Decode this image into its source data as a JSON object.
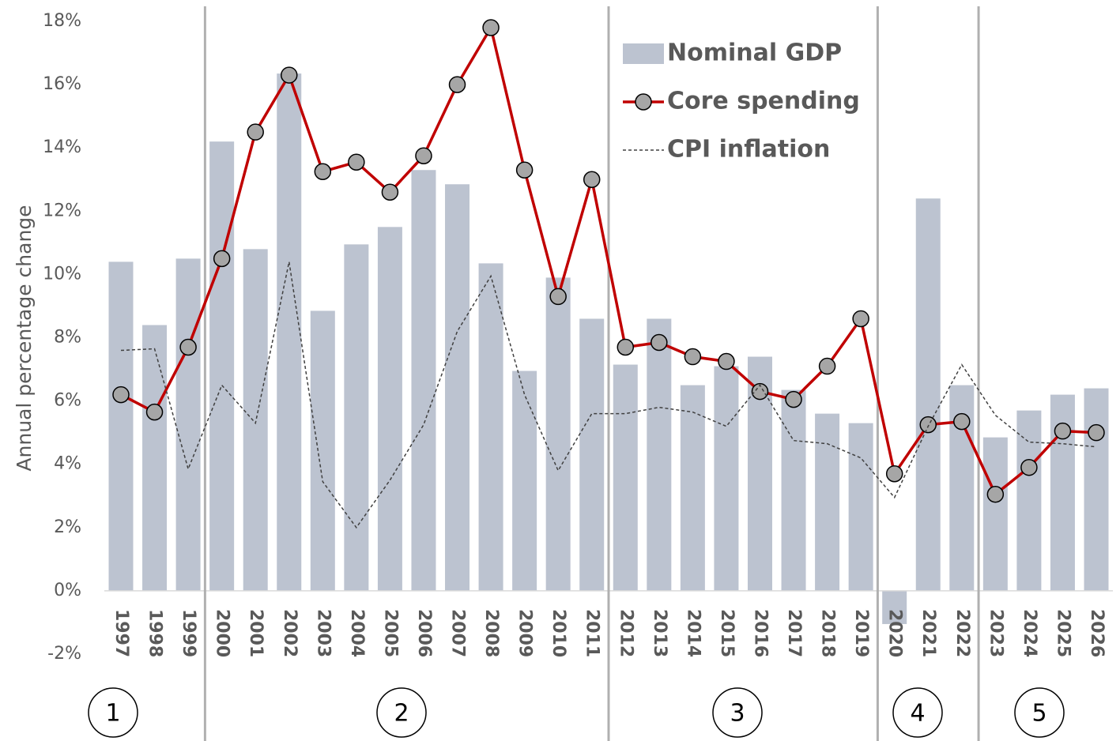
{
  "chart_data": {
    "type": "bar-line",
    "y_label": "Annual percentage change",
    "categories": [
      "1997",
      "1998",
      "1999",
      "2000",
      "2001",
      "2002",
      "2003",
      "2004",
      "2005",
      "2006",
      "2007",
      "2008",
      "2009",
      "2010",
      "2011",
      "2012",
      "2013",
      "2014",
      "2015",
      "2016",
      "2017",
      "2018",
      "2019",
      "2020",
      "2021",
      "2022",
      "2023",
      "2024",
      "2025",
      "2026"
    ],
    "series": [
      {
        "name": "Nominal GDP",
        "kind": "bar",
        "color": "#bcc3d0",
        "values": [
          10.4,
          8.4,
          10.5,
          14.2,
          10.8,
          16.35,
          8.85,
          10.95,
          11.5,
          13.3,
          12.85,
          10.35,
          6.95,
          9.9,
          8.6,
          7.15,
          8.6,
          6.5,
          7.1,
          7.4,
          6.35,
          5.6,
          5.3,
          -1.05,
          12.4,
          6.5,
          4.85,
          5.7,
          6.2,
          6.4
        ]
      },
      {
        "name": "Core spending",
        "kind": "line-marker",
        "color": "#c00000",
        "values": [
          6.2,
          5.65,
          7.7,
          10.5,
          14.5,
          16.3,
          13.25,
          13.55,
          12.6,
          13.75,
          16.0,
          17.8,
          13.3,
          9.3,
          13.0,
          7.7,
          7.85,
          7.4,
          7.25,
          6.3,
          6.05,
          7.1,
          8.6,
          3.7,
          5.25,
          5.35,
          3.05,
          3.9,
          5.05,
          5.0
        ]
      },
      {
        "name": "CPI inflation",
        "kind": "dashed-line",
        "color": "#404040",
        "values": [
          7.6,
          7.65,
          3.85,
          6.5,
          5.3,
          10.4,
          3.45,
          2.0,
          3.5,
          5.25,
          8.2,
          9.95,
          6.2,
          3.8,
          5.6,
          5.6,
          5.8,
          5.65,
          5.2,
          6.5,
          4.75,
          4.65,
          4.2,
          2.95,
          5.2,
          7.15,
          5.55,
          4.7,
          4.65,
          4.55
        ]
      }
    ],
    "ylim": [
      -2,
      18
    ],
    "yticks": [
      {
        "value": -2,
        "label": "-2%"
      },
      {
        "value": 0,
        "label": "0%"
      },
      {
        "value": 2,
        "label": "2%"
      },
      {
        "value": 4,
        "label": "4%"
      },
      {
        "value": 6,
        "label": "6%"
      },
      {
        "value": 8,
        "label": "8%"
      },
      {
        "value": 10,
        "label": "10%"
      },
      {
        "value": 12,
        "label": "12%"
      },
      {
        "value": 14,
        "label": "14%"
      },
      {
        "value": 16,
        "label": "16%"
      },
      {
        "value": 18,
        "label": "18%"
      }
    ],
    "period_labels": [
      "1",
      "2",
      "3",
      "4",
      "5"
    ]
  }
}
